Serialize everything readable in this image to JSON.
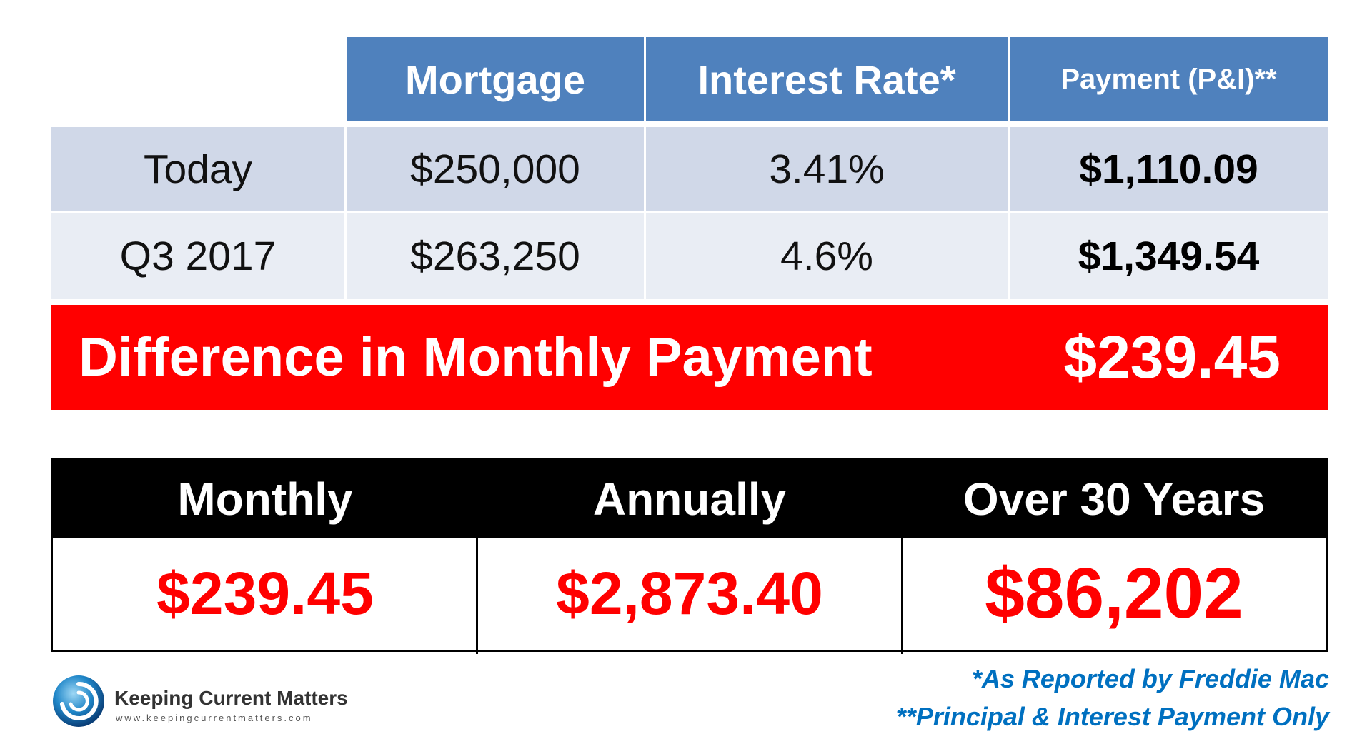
{
  "table": {
    "headers": [
      "Mortgage",
      "Interest Rate*",
      "Payment (P&I)**"
    ],
    "rows": [
      {
        "label": "Today",
        "mortgage": "$250,000",
        "rate": "3.41%",
        "payment": "$1,110.09"
      },
      {
        "label": "Q3 2017",
        "mortgage": "$263,250",
        "rate": "4.6%",
        "payment": "$1,349.54"
      }
    ]
  },
  "difference": {
    "label": "Difference in Monthly Payment",
    "value": "$239.45"
  },
  "summary": {
    "headers": [
      "Monthly",
      "Annually",
      "Over 30 Years"
    ],
    "values": [
      "$239.45",
      "$2,873.40",
      "$86,202"
    ]
  },
  "footnotes": [
    "*As Reported by Freddie Mac",
    "**Principal & Interest Payment Only"
  ],
  "brand": {
    "name": "Keeping Current Matters",
    "url": "www.keepingcurrentmatters.com"
  },
  "colors": {
    "header_blue": "#4f81bd",
    "row_light_1": "#d0d8e8",
    "row_light_2": "#e9edf4",
    "highlight_red": "#ff0000",
    "footnote_blue": "#0070c0"
  }
}
